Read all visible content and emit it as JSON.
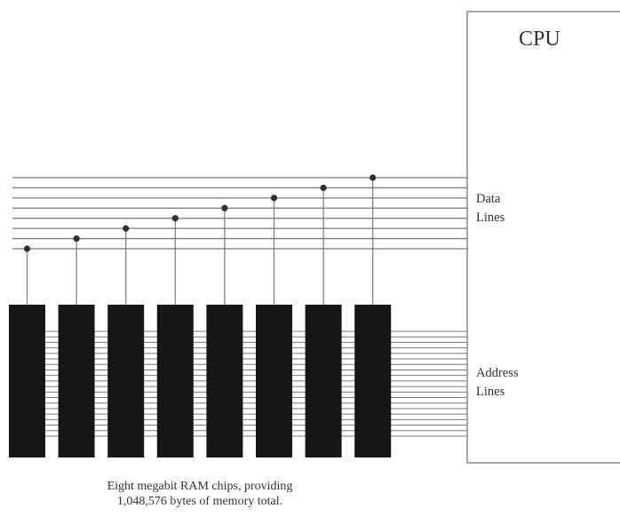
{
  "cpu": {
    "label": "CPU"
  },
  "data_bus": {
    "label_line1": "Data",
    "label_line2": "Lines"
  },
  "address_bus": {
    "label_line1": "Address",
    "label_line2": "Lines"
  },
  "ram_chips": {
    "count": 8
  },
  "caption": {
    "line1": "Eight megabit RAM chips, providing",
    "line2": "1,048,576 bytes of memory total."
  },
  "colors": {
    "line": "#7a7a7a",
    "chip": "#161616",
    "dot": "#303030",
    "cpu_border": "#8a8a8a",
    "text": "#333333"
  }
}
